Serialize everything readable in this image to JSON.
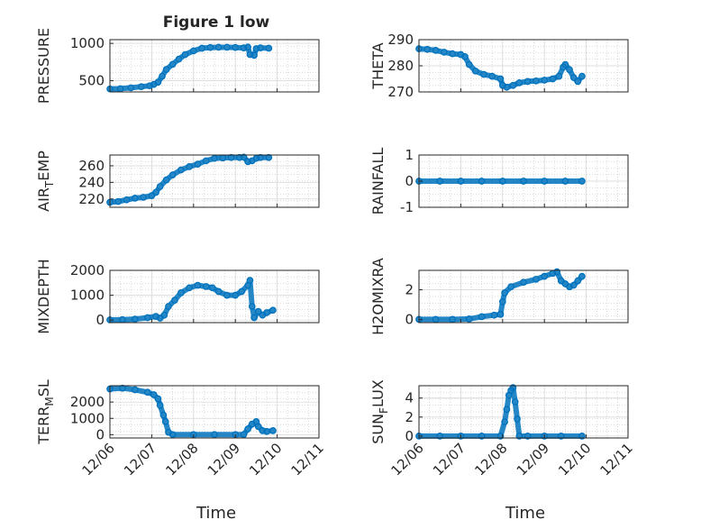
{
  "figure": {
    "title": "Figure 1 low",
    "xlabel": "Time",
    "x_ticks": [
      "12/06",
      "12/07",
      "12/08",
      "12/09",
      "12/10",
      "12/11"
    ]
  },
  "colors": {
    "marker": "#0072BD",
    "axis": "#262626",
    "grid": "#d9d9d9",
    "minor_grid": "#cfcfcf"
  },
  "chart_data": [
    {
      "type": "scatter",
      "ylabel": "PRESSURE",
      "ylim": [
        350,
        1050
      ],
      "yticks": [
        500,
        1000
      ],
      "ytick_labels": [
        "500",
        "1000"
      ],
      "xlim": [
        0,
        5
      ],
      "points": [
        [
          0.0,
          390
        ],
        [
          0.25,
          393
        ],
        [
          0.5,
          405
        ],
        [
          0.75,
          420
        ],
        [
          0.95,
          432
        ],
        [
          1.05,
          450
        ],
        [
          1.15,
          480
        ],
        [
          1.25,
          560
        ],
        [
          1.35,
          650
        ],
        [
          1.5,
          720
        ],
        [
          1.65,
          790
        ],
        [
          1.8,
          850
        ],
        [
          2.0,
          900
        ],
        [
          2.2,
          935
        ],
        [
          2.4,
          945
        ],
        [
          2.6,
          948
        ],
        [
          2.8,
          948
        ],
        [
          3.0,
          945
        ],
        [
          3.2,
          940
        ],
        [
          3.3,
          950
        ],
        [
          3.35,
          850
        ],
        [
          3.45,
          840
        ],
        [
          3.5,
          930
        ],
        [
          3.6,
          940
        ],
        [
          3.8,
          935
        ]
      ]
    },
    {
      "type": "scatter",
      "ylabel": "THETA",
      "ylim": [
        270,
        290
      ],
      "yticks": [
        270,
        280,
        290
      ],
      "ytick_labels": [
        "270",
        "280",
        "290"
      ],
      "xlim": [
        0,
        5
      ],
      "points": [
        [
          0.0,
          286.5
        ],
        [
          0.2,
          286.3
        ],
        [
          0.4,
          285.9
        ],
        [
          0.6,
          285.2
        ],
        [
          0.8,
          284.6
        ],
        [
          1.0,
          284.3
        ],
        [
          1.1,
          283.5
        ],
        [
          1.2,
          280.5
        ],
        [
          1.35,
          278.0
        ],
        [
          1.55,
          276.7
        ],
        [
          1.75,
          276.0
        ],
        [
          1.95,
          275.0
        ],
        [
          2.0,
          272.5
        ],
        [
          2.1,
          271.8
        ],
        [
          2.25,
          272.5
        ],
        [
          2.4,
          273.5
        ],
        [
          2.6,
          274.0
        ],
        [
          2.8,
          274.2
        ],
        [
          3.0,
          274.5
        ],
        [
          3.2,
          275.0
        ],
        [
          3.35,
          276.0
        ],
        [
          3.45,
          279.5
        ],
        [
          3.5,
          280.5
        ],
        [
          3.6,
          278.5
        ],
        [
          3.7,
          275.5
        ],
        [
          3.8,
          274.0
        ],
        [
          3.9,
          276.0
        ]
      ]
    },
    {
      "type": "scatter",
      "ylabel": "AIR_TEMP",
      "ylim": [
        210,
        273
      ],
      "yticks": [
        220,
        240,
        260
      ],
      "ytick_labels": [
        "220",
        "240",
        "260"
      ],
      "xlim": [
        0,
        5
      ],
      "points": [
        [
          0.0,
          216
        ],
        [
          0.2,
          217
        ],
        [
          0.4,
          219
        ],
        [
          0.6,
          221
        ],
        [
          0.8,
          222
        ],
        [
          1.0,
          224
        ],
        [
          1.1,
          228
        ],
        [
          1.2,
          235
        ],
        [
          1.35,
          243
        ],
        [
          1.5,
          249
        ],
        [
          1.7,
          255
        ],
        [
          1.9,
          259
        ],
        [
          2.1,
          262
        ],
        [
          2.3,
          266
        ],
        [
          2.5,
          269
        ],
        [
          2.7,
          269.5
        ],
        [
          2.9,
          270
        ],
        [
          3.1,
          270
        ],
        [
          3.2,
          270.5
        ],
        [
          3.3,
          265
        ],
        [
          3.4,
          266
        ],
        [
          3.5,
          269
        ],
        [
          3.6,
          270
        ],
        [
          3.8,
          270
        ]
      ]
    },
    {
      "type": "scatter",
      "ylabel": "RAINFALL",
      "ylim": [
        -1,
        1
      ],
      "yticks": [
        -1,
        0,
        1
      ],
      "ytick_labels": [
        "-1",
        "0",
        "1"
      ],
      "xlim": [
        0,
        5
      ],
      "points": [
        [
          0.0,
          0
        ],
        [
          0.5,
          0
        ],
        [
          1.0,
          0
        ],
        [
          1.5,
          0
        ],
        [
          2.0,
          0
        ],
        [
          2.5,
          0
        ],
        [
          3.0,
          0
        ],
        [
          3.5,
          0
        ],
        [
          3.9,
          0
        ]
      ]
    },
    {
      "type": "scatter",
      "ylabel": "MIXDEPTH",
      "ylim": [
        -100,
        2000
      ],
      "yticks": [
        0,
        1000,
        2000
      ],
      "ytick_labels": [
        "0",
        "1000",
        "2000"
      ],
      "xlim": [
        0,
        5
      ],
      "points": [
        [
          0.0,
          10
        ],
        [
          0.3,
          20
        ],
        [
          0.6,
          40
        ],
        [
          0.9,
          100
        ],
        [
          1.1,
          150
        ],
        [
          1.2,
          80
        ],
        [
          1.3,
          200
        ],
        [
          1.4,
          550
        ],
        [
          1.55,
          800
        ],
        [
          1.7,
          1100
        ],
        [
          1.9,
          1300
        ],
        [
          2.1,
          1400
        ],
        [
          2.3,
          1350
        ],
        [
          2.45,
          1300
        ],
        [
          2.6,
          1150
        ],
        [
          2.8,
          1000
        ],
        [
          3.0,
          1000
        ],
        [
          3.15,
          1150
        ],
        [
          3.3,
          1400
        ],
        [
          3.35,
          1600
        ],
        [
          3.4,
          550
        ],
        [
          3.45,
          100
        ],
        [
          3.55,
          350
        ],
        [
          3.65,
          200
        ],
        [
          3.75,
          300
        ],
        [
          3.9,
          400
        ]
      ]
    },
    {
      "type": "scatter",
      "ylabel": "H2OMIXRA",
      "ylim": [
        -0.2,
        3.3
      ],
      "yticks": [
        0,
        2
      ],
      "ytick_labels": [
        "0",
        "2"
      ],
      "xlim": [
        0,
        5
      ],
      "points": [
        [
          0.0,
          0.02
        ],
        [
          0.4,
          0.02
        ],
        [
          0.8,
          0.02
        ],
        [
          1.2,
          0.05
        ],
        [
          1.5,
          0.2
        ],
        [
          1.8,
          0.3
        ],
        [
          1.95,
          0.35
        ],
        [
          2.0,
          1.2
        ],
        [
          2.05,
          1.8
        ],
        [
          2.2,
          2.2
        ],
        [
          2.5,
          2.5
        ],
        [
          2.8,
          2.7
        ],
        [
          3.0,
          2.9
        ],
        [
          3.2,
          3.1
        ],
        [
          3.3,
          3.2
        ],
        [
          3.4,
          2.6
        ],
        [
          3.5,
          2.4
        ],
        [
          3.6,
          2.2
        ],
        [
          3.7,
          2.3
        ],
        [
          3.8,
          2.6
        ],
        [
          3.9,
          2.9
        ]
      ]
    },
    {
      "type": "scatter",
      "ylabel": "TERR_MSL",
      "ylim": [
        -200,
        3000
      ],
      "yticks": [
        0,
        1000,
        2000
      ],
      "ytick_labels": [
        "0",
        "1000",
        "2000"
      ],
      "xlim": [
        0,
        5
      ],
      "points": [
        [
          0.0,
          2800
        ],
        [
          0.3,
          2850
        ],
        [
          0.6,
          2750
        ],
        [
          0.9,
          2600
        ],
        [
          1.05,
          2450
        ],
        [
          1.15,
          2200
        ],
        [
          1.2,
          1800
        ],
        [
          1.28,
          1200
        ],
        [
          1.33,
          800
        ],
        [
          1.4,
          150
        ],
        [
          1.5,
          10
        ],
        [
          2.0,
          10
        ],
        [
          2.5,
          10
        ],
        [
          3.0,
          10
        ],
        [
          3.2,
          10
        ],
        [
          3.3,
          350
        ],
        [
          3.4,
          650
        ],
        [
          3.5,
          800
        ],
        [
          3.55,
          500
        ],
        [
          3.65,
          250
        ],
        [
          3.75,
          200
        ],
        [
          3.9,
          250
        ]
      ]
    },
    {
      "type": "scatter",
      "ylabel": "SUN_FLUX",
      "ylim": [
        -0.2,
        5.3
      ],
      "yticks": [
        0,
        2,
        4
      ],
      "ytick_labels": [
        "0",
        "2",
        "4"
      ],
      "xlim": [
        0,
        5
      ],
      "points": [
        [
          0.0,
          0
        ],
        [
          0.5,
          0
        ],
        [
          1.0,
          0
        ],
        [
          1.5,
          0
        ],
        [
          1.95,
          0
        ],
        [
          2.05,
          1.5
        ],
        [
          2.1,
          2.8
        ],
        [
          2.15,
          4.3
        ],
        [
          2.2,
          4.8
        ],
        [
          2.25,
          5.1
        ],
        [
          2.3,
          3.6
        ],
        [
          2.35,
          1.8
        ],
        [
          2.4,
          0
        ],
        [
          2.6,
          0
        ],
        [
          3.0,
          0
        ],
        [
          3.4,
          0
        ],
        [
          3.9,
          0
        ]
      ]
    }
  ]
}
